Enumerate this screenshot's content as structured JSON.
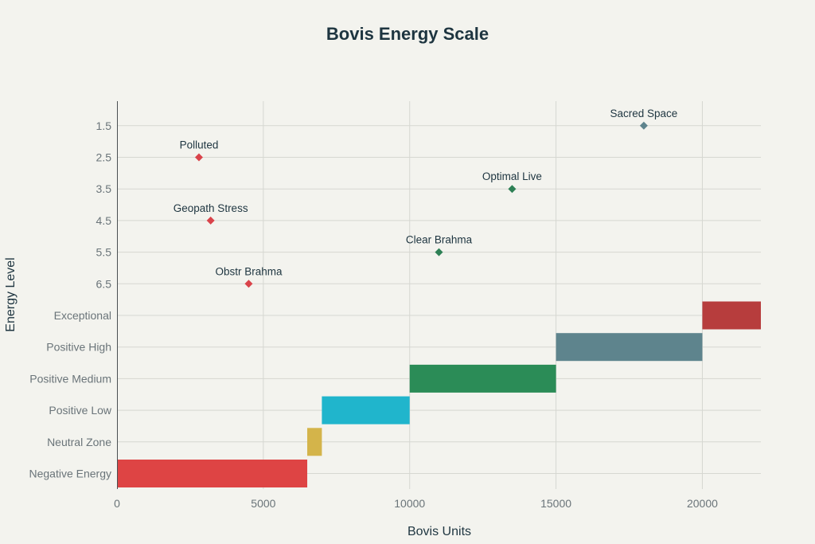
{
  "chart_data": {
    "type": "bar",
    "orientation": "horizontal",
    "title": "Bovis Energy Scale",
    "xlabel": "Bovis Units",
    "ylabel": "Energy Level",
    "xlim": [
      0,
      22000
    ],
    "xticks": [
      0,
      5000,
      10000,
      15000,
      20000
    ],
    "categories": [
      "Negative Energy",
      "Neutral Zone",
      "Positive Low",
      "Positive Medium",
      "Positive High",
      "Exceptional",
      "6.5",
      "5.5",
      "4.5",
      "3.5",
      "2.5",
      "1.5"
    ],
    "grid": true,
    "ranges": [
      {
        "category": "Negative Energy",
        "start": 0,
        "end": 6500,
        "color": "#de4444"
      },
      {
        "category": "Neutral Zone",
        "start": 6500,
        "end": 7000,
        "color": "#d4b44a"
      },
      {
        "category": "Positive Low",
        "start": 7000,
        "end": 10000,
        "color": "#20b5cc"
      },
      {
        "category": "Positive Medium",
        "start": 10000,
        "end": 15000,
        "color": "#2b8c57"
      },
      {
        "category": "Positive High",
        "start": 15000,
        "end": 20000,
        "color": "#5e848d"
      },
      {
        "category": "Exceptional",
        "start": 20000,
        "end": 22000,
        "color": "#b73d3d"
      }
    ],
    "points": [
      {
        "label": "Obstr Brahma",
        "x": 4500,
        "category": "6.5",
        "color": "#d9434a"
      },
      {
        "label": "Clear Brahma",
        "x": 11000,
        "category": "5.5",
        "color": "#2e8055"
      },
      {
        "label": "Geopath Stress",
        "x": 3200,
        "category": "4.5",
        "color": "#d9434a"
      },
      {
        "label": "Optimal Live",
        "x": 13500,
        "category": "3.5",
        "color": "#2e8055"
      },
      {
        "label": "Polluted",
        "x": 2800,
        "category": "2.5",
        "color": "#d9434a"
      },
      {
        "label": "Sacred Space",
        "x": 18000,
        "category": "1.5",
        "color": "#5e848d"
      }
    ]
  }
}
